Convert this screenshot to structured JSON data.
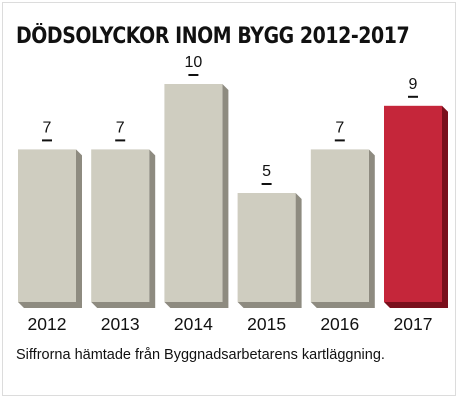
{
  "chart_data": {
    "type": "bar",
    "title": "DÖDSOLYCKOR INOM BYGG 2012-2017",
    "categories": [
      "2012",
      "2013",
      "2014",
      "2015",
      "2016",
      "2017"
    ],
    "values": [
      7,
      7,
      10,
      5,
      7,
      9
    ],
    "xlabel": "",
    "ylabel": "",
    "ylim": [
      0,
      10
    ],
    "grid": false,
    "legend": "none",
    "colors": {
      "default_bar": "#cfcdc0",
      "default_bar_shadow": "#8e8b80",
      "highlight_bar": "#c5263a",
      "highlight_bar_shadow": "#7a0f1c",
      "highlight_category": "2017"
    },
    "note": "Siffrorna hämtade från Byggnadsarbetarens kartläggning."
  }
}
